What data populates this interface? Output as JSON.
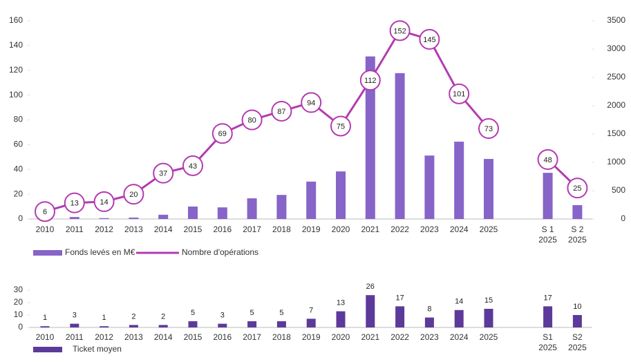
{
  "chart_data": [
    {
      "type": "combo",
      "categories": [
        "2010",
        "2011",
        "2012",
        "2013",
        "2014",
        "2015",
        "2016",
        "2017",
        "2018",
        "2019",
        "2020",
        "2021",
        "2022",
        "2023",
        "2024",
        "2025",
        null,
        "S 1\n2025",
        "S 2\n2025"
      ],
      "series": [
        {
          "name": "Fonds levés en M€",
          "type": "bar",
          "axis": "y2",
          "color": "#8764c8",
          "values": [
            10,
            35,
            15,
            25,
            75,
            220,
            205,
            365,
            425,
            660,
            840,
            2870,
            2575,
            1120,
            1365,
            1060,
            null,
            815,
            245
          ]
        },
        {
          "name": "Nombre d'opérations",
          "type": "line",
          "axis": "y",
          "color": "#b23bb0",
          "values": [
            6,
            13,
            14,
            20,
            37,
            43,
            69,
            80,
            87,
            94,
            75,
            112,
            152,
            145,
            101,
            73,
            null,
            48,
            25
          ]
        }
      ],
      "ylim": [
        0,
        160
      ],
      "yticks": [
        0,
        20,
        40,
        60,
        80,
        100,
        120,
        140,
        160
      ],
      "y2lim": [
        0,
        3500
      ],
      "y2ticks": [
        0,
        500,
        1000,
        1500,
        2000,
        2500,
        3000,
        3500
      ],
      "grid": false,
      "legend": "bottom-left",
      "data_labels": true
    },
    {
      "type": "bar",
      "categories": [
        "2010",
        "2011",
        "2012",
        "2013",
        "2014",
        "2015",
        "2016",
        "2017",
        "2018",
        "2019",
        "2020",
        "2021",
        "2022",
        "2023",
        "2024",
        "2025",
        null,
        "S1\n2025",
        "S2\n2025"
      ],
      "series": [
        {
          "name": "Ticket moyen",
          "type": "bar",
          "axis": "y",
          "color": "#5c3a9a",
          "values": [
            1,
            3,
            1,
            2,
            2,
            5,
            3,
            5,
            5,
            7,
            13,
            26,
            17,
            8,
            14,
            15,
            null,
            17,
            10
          ]
        }
      ],
      "ylim": [
        0,
        30
      ],
      "yticks": [
        0,
        10,
        20,
        30
      ],
      "grid": false,
      "legend": "bottom-left",
      "data_labels": true
    }
  ]
}
